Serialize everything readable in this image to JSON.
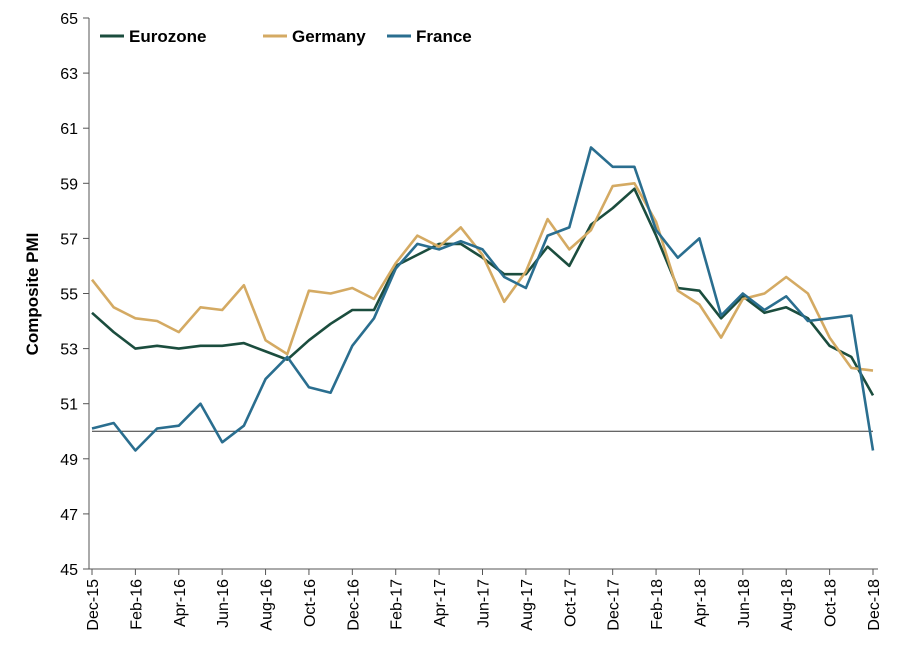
{
  "chart_data": {
    "type": "line",
    "ylabel": "Composite PMI",
    "ylim": [
      45,
      65
    ],
    "yticks": [
      45,
      47,
      49,
      51,
      53,
      55,
      57,
      59,
      61,
      63,
      65
    ],
    "reference_line": 50,
    "legend_position": "top-left",
    "grid": false,
    "x": [
      "Dec-15",
      "Jan-16",
      "Feb-16",
      "Mar-16",
      "Apr-16",
      "May-16",
      "Jun-16",
      "Jul-16",
      "Aug-16",
      "Sep-16",
      "Oct-16",
      "Nov-16",
      "Dec-16",
      "Jan-17",
      "Feb-17",
      "Mar-17",
      "Apr-17",
      "May-17",
      "Jun-17",
      "Jul-17",
      "Aug-17",
      "Sep-17",
      "Oct-17",
      "Nov-17",
      "Dec-17",
      "Jan-18",
      "Feb-18",
      "Mar-18",
      "Apr-18",
      "May-18",
      "Jun-18",
      "Jul-18",
      "Aug-18",
      "Sep-18",
      "Oct-18",
      "Nov-18",
      "Dec-18"
    ],
    "x_tick_labels": [
      "Dec-15",
      "Feb-16",
      "Apr-16",
      "Jun-16",
      "Aug-16",
      "Oct-16",
      "Dec-16",
      "Feb-17",
      "Apr-17",
      "Jun-17",
      "Aug-17",
      "Oct-17",
      "Dec-17",
      "Feb-18",
      "Apr-18",
      "Jun-18",
      "Aug-18",
      "Oct-18",
      "Dec-18"
    ],
    "series": [
      {
        "name": "Eurozone",
        "color": "#1b4d3e",
        "values": [
          54.3,
          53.6,
          53.0,
          53.1,
          53.0,
          53.1,
          53.1,
          53.2,
          52.9,
          52.6,
          53.3,
          53.9,
          54.4,
          54.4,
          56.0,
          56.4,
          56.8,
          56.8,
          56.3,
          55.7,
          55.7,
          56.7,
          56.0,
          57.5,
          58.1,
          58.8,
          57.1,
          55.2,
          55.1,
          54.1,
          54.9,
          54.3,
          54.5,
          54.1,
          53.1,
          52.7,
          51.3
        ]
      },
      {
        "name": "Germany",
        "color": "#d4aa63",
        "values": [
          55.5,
          54.5,
          54.1,
          54.0,
          53.6,
          54.5,
          54.4,
          55.3,
          53.3,
          52.8,
          55.1,
          55.0,
          55.2,
          54.8,
          56.1,
          57.1,
          56.7,
          57.4,
          56.4,
          54.7,
          55.8,
          57.7,
          56.6,
          57.3,
          58.9,
          59.0,
          57.6,
          55.1,
          54.6,
          53.4,
          54.8,
          55.0,
          55.6,
          55.0,
          53.4,
          52.3,
          52.2
        ]
      },
      {
        "name": "France",
        "color": "#2a6e8f",
        "values": [
          50.1,
          50.3,
          49.3,
          50.1,
          50.2,
          51.0,
          49.6,
          50.2,
          51.9,
          52.7,
          51.6,
          51.4,
          53.1,
          54.1,
          55.9,
          56.8,
          56.6,
          56.9,
          56.6,
          55.6,
          55.2,
          57.1,
          57.4,
          60.3,
          59.6,
          59.6,
          57.3,
          56.3,
          57.0,
          54.2,
          55.0,
          54.4,
          54.9,
          54.0,
          54.1,
          54.2,
          49.3
        ]
      }
    ]
  }
}
